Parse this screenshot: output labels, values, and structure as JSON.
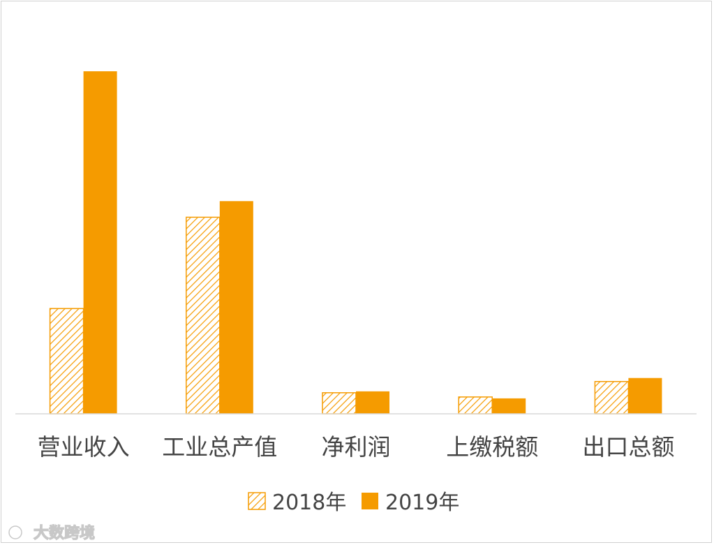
{
  "chart_data": {
    "type": "bar",
    "categories": [
      "营业收入",
      "工业总产值",
      "净利润",
      "上缴税额",
      "出口总额"
    ],
    "series": [
      {
        "name": "2018年",
        "values": [
          150,
          280,
          30,
          24,
          46
        ],
        "pattern": "hatch"
      },
      {
        "name": "2019年",
        "values": [
          488,
          303,
          32,
          22,
          51
        ],
        "pattern": "solid"
      }
    ],
    "ylim": [
      0,
      510
    ],
    "grid": false,
    "legend_position": "bottom",
    "colors": {
      "series": "#F59B00",
      "axis": "#d9d9d9"
    }
  },
  "watermark": {
    "text": "大数跨境"
  }
}
